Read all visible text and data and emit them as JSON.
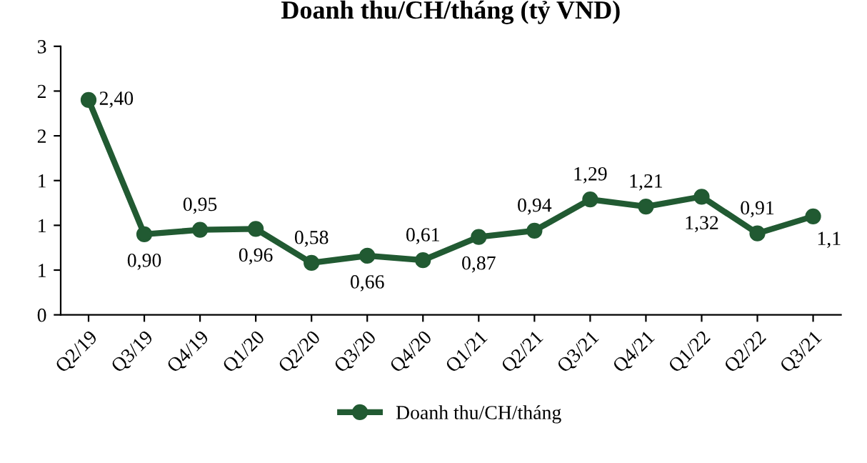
{
  "chart_data": {
    "type": "line",
    "title": "Doanh thu/CH/tháng (tỷ VND)",
    "categories": [
      "Q2/19",
      "Q3/19",
      "Q4/19",
      "Q1/20",
      "Q2/20",
      "Q3/20",
      "Q4/20",
      "Q1/21",
      "Q2/21",
      "Q3/21",
      "Q4/21",
      "Q1/22",
      "Q2/22",
      "Q3/21"
    ],
    "series": [
      {
        "name": "Doanh thu/CH/tháng",
        "color": "#215a32",
        "values": [
          2.4,
          0.9,
          0.95,
          0.96,
          0.58,
          0.66,
          0.61,
          0.87,
          0.94,
          1.29,
          1.21,
          1.32,
          0.91,
          1.1
        ],
        "value_labels": [
          "2,40",
          "0,90",
          "0,95",
          "0,96",
          "0,58",
          "0,66",
          "0,61",
          "0,87",
          "0,94",
          "1,29",
          "1,21",
          "1,32",
          "0,91",
          "1,1"
        ]
      }
    ],
    "ylim": [
      0,
      3
    ],
    "yticks": [
      0,
      {
        "value": 0.5,
        "label": "1"
      },
      {
        "value": 1,
        "label": "1"
      },
      {
        "value": 1.5,
        "label": "1"
      },
      {
        "value": 2,
        "label": "2"
      },
      {
        "value": 2.5,
        "label": "2"
      },
      3
    ],
    "marker": "circle",
    "line_style": "solid",
    "legend": "bottom",
    "grid": false
  }
}
